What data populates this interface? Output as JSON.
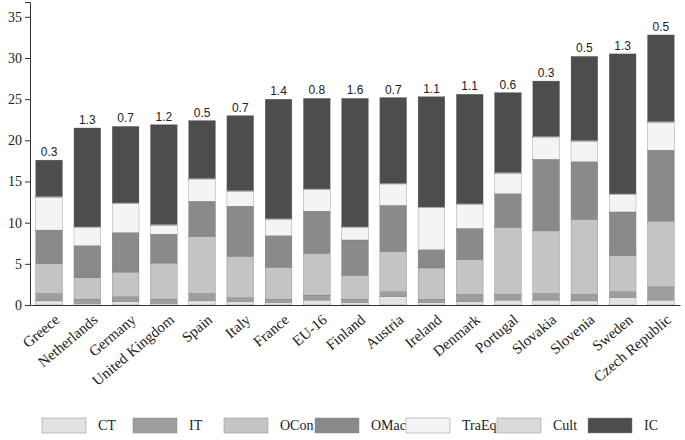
{
  "chart_data": {
    "type": "bar",
    "stacked": true,
    "categories": [
      "Greece",
      "Netherlands",
      "Germany",
      "United Kingdom",
      "Spain",
      "Italy",
      "France",
      "EU-16",
      "Finland",
      "Austria",
      "Ireland",
      "Denmark",
      "Portugal",
      "Slovakia",
      "Slovenia",
      "Sweden",
      "Czech Republic"
    ],
    "series": [
      {
        "name": "CT",
        "color": "#e2e2e2",
        "values": [
          0.5,
          0.2,
          0.4,
          0.2,
          0.5,
          0.4,
          0.3,
          0.6,
          0.3,
          1.0,
          0.3,
          0.4,
          0.6,
          0.6,
          0.5,
          0.9,
          0.6
        ]
      },
      {
        "name": "IT",
        "color": "#9e9e9e",
        "values": [
          0.9,
          0.5,
          0.6,
          0.5,
          0.9,
          0.5,
          0.4,
          0.6,
          0.4,
          0.6,
          0.4,
          0.9,
          0.7,
          0.8,
          0.8,
          0.7,
          1.6
        ]
      },
      {
        "name": "OCon",
        "color": "#c4c4c4",
        "values": [
          3.6,
          2.6,
          3.0,
          4.4,
          6.9,
          5.0,
          3.9,
          5.1,
          2.9,
          4.9,
          3.8,
          4.2,
          8.1,
          7.6,
          9.1,
          4.4,
          8.0
        ]
      },
      {
        "name": "OMach",
        "color": "#8a8a8a",
        "values": [
          4.1,
          3.9,
          4.8,
          3.5,
          4.3,
          6.1,
          3.8,
          5.1,
          4.3,
          5.6,
          2.2,
          3.8,
          4.1,
          8.7,
          7.0,
          5.3,
          8.6
        ]
      },
      {
        "name": "TraEq",
        "color": "#f4f4f4",
        "values": [
          4.0,
          2.2,
          3.5,
          1.1,
          2.7,
          1.8,
          2.0,
          2.6,
          1.5,
          2.6,
          5.1,
          2.9,
          2.5,
          2.7,
          2.5,
          2.1,
          3.4
        ]
      },
      {
        "name": "Cult",
        "color": "#dadada",
        "values": [
          0.1,
          0.1,
          0.1,
          0.1,
          0.1,
          0.1,
          0.1,
          0.1,
          0.1,
          0.1,
          0.1,
          0.1,
          0.1,
          0.1,
          0.1,
          0.1,
          0.1
        ]
      },
      {
        "name": "IC",
        "color": "#4d4d4d",
        "values": [
          4.4,
          12.0,
          9.3,
          12.1,
          7.0,
          9.1,
          14.5,
          11.0,
          15.6,
          10.4,
          13.4,
          13.3,
          9.7,
          6.7,
          10.2,
          17.0,
          10.5
        ]
      }
    ],
    "top_labels": [
      0.3,
      1.3,
      0.7,
      1.2,
      0.5,
      0.7,
      1.4,
      0.8,
      1.6,
      0.7,
      1.1,
      1.1,
      0.6,
      0.3,
      0.5,
      1.3,
      0.5
    ],
    "ylim": [
      0,
      36.8
    ],
    "yticks": [
      0,
      5,
      10,
      15,
      20,
      25,
      30,
      35
    ],
    "legend": "bottom"
  }
}
